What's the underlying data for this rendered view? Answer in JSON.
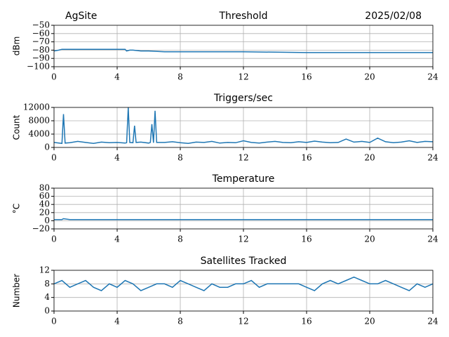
{
  "chart_data": [
    {
      "type": "line",
      "site": "AgSite",
      "title": "Threshold",
      "date": "2025/02/08",
      "ylabel": "dBm",
      "color": "#1f77b4",
      "grid": true,
      "x": [
        0,
        0.3,
        0.5,
        1,
        2,
        3,
        4,
        4.5,
        4.6,
        4.8,
        5,
        5.5,
        6,
        7,
        8,
        10,
        12,
        14,
        16,
        18,
        20,
        22,
        24
      ],
      "values": [
        -81,
        -80,
        -79,
        -79,
        -79,
        -79,
        -79,
        -79,
        -81,
        -80,
        -80,
        -81,
        -81,
        -82,
        -82,
        -82,
        -82,
        -82.5,
        -83,
        -83,
        -83,
        -83,
        -83
      ],
      "xlim": [
        0,
        24
      ],
      "xticks": [
        0,
        4,
        8,
        12,
        16,
        20,
        24
      ],
      "ylim": [
        -100,
        -50
      ],
      "yticks": [
        {
          "value": -100,
          "label": "−100"
        },
        {
          "value": -90,
          "label": "−90"
        },
        {
          "value": -80,
          "label": "−80"
        },
        {
          "value": -70,
          "label": "−70"
        },
        {
          "value": -60,
          "label": "−60"
        },
        {
          "value": -50,
          "label": "−50"
        }
      ]
    },
    {
      "type": "line",
      "title": "Triggers/sec",
      "ylabel": "Count",
      "color": "#1f77b4",
      "grid": true,
      "x": [
        0,
        0.5,
        0.6,
        0.7,
        1,
        1.5,
        2,
        2.5,
        3,
        3.5,
        4,
        4.5,
        4.6,
        4.7,
        4.8,
        5,
        5.1,
        5.2,
        5.5,
        6,
        6.1,
        6.2,
        6.3,
        6.4,
        6.5,
        7,
        7.5,
        8,
        8.5,
        9,
        9.5,
        10,
        10.5,
        11,
        11.5,
        12,
        12.5,
        13,
        13.5,
        14,
        14.5,
        15,
        15.5,
        16,
        16.5,
        17,
        17.5,
        18,
        18.5,
        19,
        19.5,
        20,
        20.5,
        21,
        21.5,
        22,
        22.5,
        23,
        23.5,
        24
      ],
      "values": [
        1500,
        1200,
        10000,
        1300,
        1400,
        1800,
        1500,
        1200,
        1600,
        1400,
        1500,
        1300,
        1400,
        12000,
        1500,
        1400,
        6500,
        1500,
        1600,
        1300,
        1500,
        7000,
        1400,
        11000,
        1500,
        1500,
        1700,
        1400,
        1200,
        1600,
        1500,
        1800,
        1300,
        1500,
        1400,
        2000,
        1500,
        1300,
        1600,
        1800,
        1500,
        1400,
        1700,
        1500,
        1900,
        1600,
        1400,
        1500,
        2500,
        1600,
        1800,
        1500,
        2800,
        1700,
        1400,
        1600,
        2000,
        1500,
        1800,
        1700
      ],
      "xlim": [
        0,
        24
      ],
      "xticks": [
        0,
        4,
        8,
        12,
        16,
        20,
        24
      ],
      "ylim": [
        0,
        12000
      ],
      "yticks": [
        0,
        4000,
        8000,
        12000
      ]
    },
    {
      "type": "line",
      "title": "Temperature",
      "ylabel": "°C",
      "color": "#1f77b4",
      "grid": true,
      "x": [
        0,
        0.5,
        0.6,
        1,
        4,
        8,
        12,
        16,
        20,
        24
      ],
      "values": [
        3,
        3,
        5,
        3,
        3,
        3,
        3,
        3,
        3,
        3
      ],
      "xlim": [
        0,
        24
      ],
      "xticks": [
        0,
        4,
        8,
        12,
        16,
        20,
        24
      ],
      "ylim": [
        -20,
        80
      ],
      "yticks": [
        {
          "value": -20,
          "label": "−20"
        },
        0,
        20,
        40,
        60,
        80
      ]
    },
    {
      "type": "line",
      "title": "Satellites Tracked",
      "ylabel": "Number",
      "color": "#1f77b4",
      "grid": true,
      "x": [
        0,
        0.5,
        1,
        1.5,
        2,
        2.5,
        3,
        3.5,
        4,
        4.5,
        5,
        5.5,
        6,
        6.5,
        7,
        7.5,
        8,
        8.5,
        9,
        9.5,
        10,
        10.5,
        11,
        11.5,
        12,
        12.5,
        13,
        13.5,
        14,
        14.5,
        15,
        15.5,
        16,
        16.5,
        17,
        17.5,
        18,
        18.5,
        19,
        19.5,
        20,
        20.5,
        21,
        21.5,
        22,
        22.5,
        23,
        23.5,
        24
      ],
      "values": [
        8,
        9,
        7,
        8,
        9,
        7,
        6,
        8,
        7,
        9,
        8,
        6,
        7,
        8,
        8,
        7,
        9,
        8,
        7,
        6,
        8,
        7,
        7,
        8,
        8,
        9,
        7,
        8,
        8,
        8,
        8,
        8,
        7,
        6,
        8,
        9,
        8,
        9,
        10,
        9,
        8,
        8,
        9,
        8,
        7,
        6,
        8,
        7,
        8
      ],
      "xlim": [
        0,
        24
      ],
      "xticks": [
        0,
        4,
        8,
        12,
        16,
        20,
        24
      ],
      "ylim": [
        0,
        12
      ],
      "yticks": [
        0,
        4,
        8,
        12
      ]
    }
  ]
}
